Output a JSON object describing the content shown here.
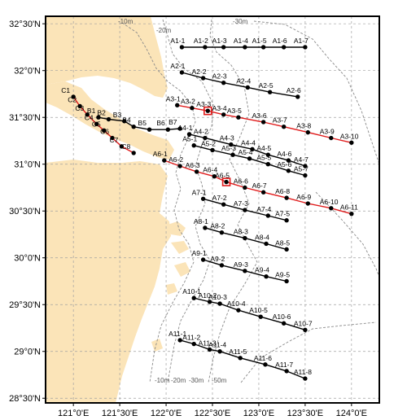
{
  "map": {
    "lon_range": [
      120.7,
      124.3
    ],
    "lat_range": [
      28.45,
      32.58
    ],
    "colors": {
      "land": "#fbe4b8",
      "station": "#000000",
      "line_black": "#000000",
      "line_red": "#e01b1b",
      "isobath": "#8a8a8a"
    },
    "x_ticks": [
      {
        "lon": 121.0,
        "label": "121°0'E"
      },
      {
        "lon": 121.5,
        "label": "121°30'E"
      },
      {
        "lon": 122.0,
        "label": "122°0'E"
      },
      {
        "lon": 122.5,
        "label": "122°30'E"
      },
      {
        "lon": 123.0,
        "label": "123°0'E"
      },
      {
        "lon": 123.5,
        "label": "123°30'E"
      },
      {
        "lon": 124.0,
        "label": "124°0'E"
      }
    ],
    "y_ticks": [
      {
        "lat": 32.5,
        "label": "32°30'N"
      },
      {
        "lat": 32.0,
        "label": "32°0'N"
      },
      {
        "lat": 31.5,
        "label": "31°30'N"
      },
      {
        "lat": 31.0,
        "label": "31°0'N"
      },
      {
        "lat": 30.5,
        "label": "30°30'N"
      },
      {
        "lat": 30.0,
        "label": "30°0'N"
      },
      {
        "lat": 29.5,
        "label": "29°30'N"
      },
      {
        "lat": 29.0,
        "label": "29°0'N"
      },
      {
        "lat": 28.5,
        "label": "28°30'N"
      }
    ],
    "isobath_labels": [
      "-10m",
      "-20m",
      "-30m",
      "-10m",
      "-20m",
      "-30m",
      "-50m"
    ],
    "transects": [
      {
        "id": "C",
        "color": "red",
        "stations": [
          {
            "name": "C1",
            "lon": 121.0,
            "lat": 31.72
          },
          {
            "name": "C2",
            "lon": 121.07,
            "lat": 31.62
          },
          {
            "name": "C3",
            "lon": 121.15,
            "lat": 31.53
          },
          {
            "name": "C4",
            "lon": 121.25,
            "lat": 31.43
          },
          {
            "name": "C5",
            "lon": 121.33,
            "lat": 31.36
          },
          {
            "name": "C6",
            "lon": 121.42,
            "lat": 31.28
          },
          {
            "name": "C7",
            "lon": 121.52,
            "lat": 31.19
          },
          {
            "name": "C8",
            "lon": 121.65,
            "lat": 31.12
          }
        ]
      },
      {
        "id": "B",
        "color": "black",
        "stations": [
          {
            "name": "B1",
            "lon": 121.27,
            "lat": 31.5
          },
          {
            "name": "B2",
            "lon": 121.38,
            "lat": 31.48
          },
          {
            "name": "B3",
            "lon": 121.55,
            "lat": 31.46
          },
          {
            "name": "B4",
            "lon": 121.65,
            "lat": 31.4
          },
          {
            "name": "B5",
            "lon": 121.82,
            "lat": 31.37
          },
          {
            "name": "B6",
            "lon": 122.02,
            "lat": 31.37
          },
          {
            "name": "B7",
            "lon": 122.15,
            "lat": 31.38
          }
        ]
      },
      {
        "id": "A1",
        "color": "black",
        "stations": [
          {
            "name": "A1-1",
            "lon": 122.17,
            "lat": 32.25
          },
          {
            "name": "A1-2",
            "lon": 122.42,
            "lat": 32.25
          },
          {
            "name": "A1-3",
            "lon": 122.62,
            "lat": 32.25
          },
          {
            "name": "A1-4",
            "lon": 122.85,
            "lat": 32.25
          },
          {
            "name": "A1-5",
            "lon": 123.05,
            "lat": 32.25
          },
          {
            "name": "A1-6",
            "lon": 123.27,
            "lat": 32.25
          },
          {
            "name": "A1-7",
            "lon": 123.5,
            "lat": 32.25
          }
        ]
      },
      {
        "id": "A2",
        "color": "black",
        "stations": [
          {
            "name": "A2-1",
            "lon": 122.17,
            "lat": 31.98
          },
          {
            "name": "A2-2",
            "lon": 122.4,
            "lat": 31.92
          },
          {
            "name": "A2-3",
            "lon": 122.62,
            "lat": 31.87
          },
          {
            "name": "A2-4",
            "lon": 122.88,
            "lat": 31.82
          },
          {
            "name": "A2-5",
            "lon": 123.12,
            "lat": 31.77
          },
          {
            "name": "A2-6",
            "lon": 123.42,
            "lat": 31.72
          }
        ]
      },
      {
        "id": "A3",
        "color": "red",
        "stations": [
          {
            "name": "A3-1",
            "lon": 122.12,
            "lat": 31.63
          },
          {
            "name": "A3-2",
            "lon": 122.28,
            "lat": 31.6
          },
          {
            "name": "A3-3",
            "lon": 122.45,
            "lat": 31.57,
            "marked": true
          },
          {
            "name": "A3-4",
            "lon": 122.62,
            "lat": 31.53
          },
          {
            "name": "A3-5",
            "lon": 122.78,
            "lat": 31.5
          },
          {
            "name": "A3-6",
            "lon": 123.05,
            "lat": 31.45
          },
          {
            "name": "A3-7",
            "lon": 123.27,
            "lat": 31.4
          },
          {
            "name": "A3-8",
            "lon": 123.53,
            "lat": 31.34
          },
          {
            "name": "A3-9",
            "lon": 123.78,
            "lat": 31.28
          },
          {
            "name": "A3-10",
            "lon": 124.0,
            "lat": 31.23
          }
        ]
      },
      {
        "id": "A4",
        "color": "black",
        "stations": [
          {
            "name": "A4-1",
            "lon": 122.25,
            "lat": 31.32
          },
          {
            "name": "A4-2",
            "lon": 122.42,
            "lat": 31.28
          },
          {
            "name": "A4-3",
            "lon": 122.7,
            "lat": 31.21
          },
          {
            "name": "A4-4",
            "lon": 122.93,
            "lat": 31.16
          },
          {
            "name": "A4-5",
            "lon": 123.1,
            "lat": 31.1
          },
          {
            "name": "A4-6",
            "lon": 123.32,
            "lat": 31.04
          },
          {
            "name": "A4-7",
            "lon": 123.5,
            "lat": 30.98
          }
        ]
      },
      {
        "id": "A5",
        "color": "black",
        "stations": [
          {
            "name": "A5-1",
            "lon": 122.3,
            "lat": 31.2
          },
          {
            "name": "A5-2",
            "lon": 122.5,
            "lat": 31.15
          },
          {
            "name": "A5-3",
            "lon": 122.72,
            "lat": 31.1
          },
          {
            "name": "A5-4",
            "lon": 122.9,
            "lat": 31.06
          },
          {
            "name": "A5-5",
            "lon": 123.1,
            "lat": 31.0
          },
          {
            "name": "A5-6",
            "lon": 123.32,
            "lat": 30.93
          },
          {
            "name": "A5-7",
            "lon": 123.5,
            "lat": 30.88
          }
        ]
      },
      {
        "id": "A6",
        "color": "red",
        "stations": [
          {
            "name": "A6-1",
            "lon": 121.98,
            "lat": 31.04
          },
          {
            "name": "A6-2",
            "lon": 122.15,
            "lat": 30.98
          },
          {
            "name": "A6-3",
            "lon": 122.33,
            "lat": 30.92
          },
          {
            "name": "A6-4",
            "lon": 122.52,
            "lat": 30.87
          },
          {
            "name": "A6-5",
            "lon": 122.65,
            "lat": 30.81,
            "marked": true
          },
          {
            "name": "A6-6",
            "lon": 122.85,
            "lat": 30.75
          },
          {
            "name": "A6-7",
            "lon": 123.05,
            "lat": 30.7
          },
          {
            "name": "A6-8",
            "lon": 123.3,
            "lat": 30.64
          },
          {
            "name": "A6-9",
            "lon": 123.53,
            "lat": 30.58
          },
          {
            "name": "A6-10",
            "lon": 123.78,
            "lat": 30.53
          },
          {
            "name": "A6-11",
            "lon": 124.0,
            "lat": 30.47
          }
        ]
      },
      {
        "id": "A7",
        "color": "black",
        "stations": [
          {
            "name": "A7-1",
            "lon": 122.4,
            "lat": 30.63
          },
          {
            "name": "A7-2",
            "lon": 122.62,
            "lat": 30.57
          },
          {
            "name": "A7-3",
            "lon": 122.85,
            "lat": 30.51
          },
          {
            "name": "A7-4",
            "lon": 123.1,
            "lat": 30.45
          },
          {
            "name": "A7-5",
            "lon": 123.3,
            "lat": 30.4
          }
        ]
      },
      {
        "id": "A8",
        "color": "black",
        "stations": [
          {
            "name": "A8-1",
            "lon": 122.42,
            "lat": 30.32
          },
          {
            "name": "A8-2",
            "lon": 122.6,
            "lat": 30.27
          },
          {
            "name": "A8-3",
            "lon": 122.85,
            "lat": 30.21
          },
          {
            "name": "A8-4",
            "lon": 123.08,
            "lat": 30.15
          },
          {
            "name": "A8-5",
            "lon": 123.3,
            "lat": 30.09
          }
        ]
      },
      {
        "id": "A9",
        "color": "black",
        "stations": [
          {
            "name": "A9-1",
            "lon": 122.4,
            "lat": 29.98
          },
          {
            "name": "A9-2",
            "lon": 122.6,
            "lat": 29.92
          },
          {
            "name": "A9-3",
            "lon": 122.85,
            "lat": 29.86
          },
          {
            "name": "A9-4",
            "lon": 123.08,
            "lat": 29.8
          },
          {
            "name": "A9-5",
            "lon": 123.3,
            "lat": 29.75
          }
        ]
      },
      {
        "id": "A10",
        "color": "black",
        "stations": [
          {
            "name": "A10-1",
            "lon": 122.3,
            "lat": 29.57
          },
          {
            "name": "A10-2",
            "lon": 122.47,
            "lat": 29.53
          },
          {
            "name": "A10-3",
            "lon": 122.58,
            "lat": 29.51
          },
          {
            "name": "A10-4",
            "lon": 122.78,
            "lat": 29.44
          },
          {
            "name": "A10-5",
            "lon": 123.02,
            "lat": 29.37
          },
          {
            "name": "A10-6",
            "lon": 123.27,
            "lat": 29.3
          },
          {
            "name": "A10-7",
            "lon": 123.5,
            "lat": 29.23
          }
        ]
      },
      {
        "id": "A11",
        "color": "black",
        "stations": [
          {
            "name": "A11-1",
            "lon": 122.15,
            "lat": 29.12
          },
          {
            "name": "A11-2",
            "lon": 122.3,
            "lat": 29.08
          },
          {
            "name": "A11-3",
            "lon": 122.47,
            "lat": 29.02
          },
          {
            "name": "A11-4",
            "lon": 122.58,
            "lat": 29.0
          },
          {
            "name": "A11-5",
            "lon": 122.8,
            "lat": 28.93
          },
          {
            "name": "A11-6",
            "lon": 123.07,
            "lat": 28.86
          },
          {
            "name": "A11-7",
            "lon": 123.3,
            "lat": 28.79
          },
          {
            "name": "A11-8",
            "lon": 123.5,
            "lat": 28.71
          }
        ]
      }
    ]
  }
}
